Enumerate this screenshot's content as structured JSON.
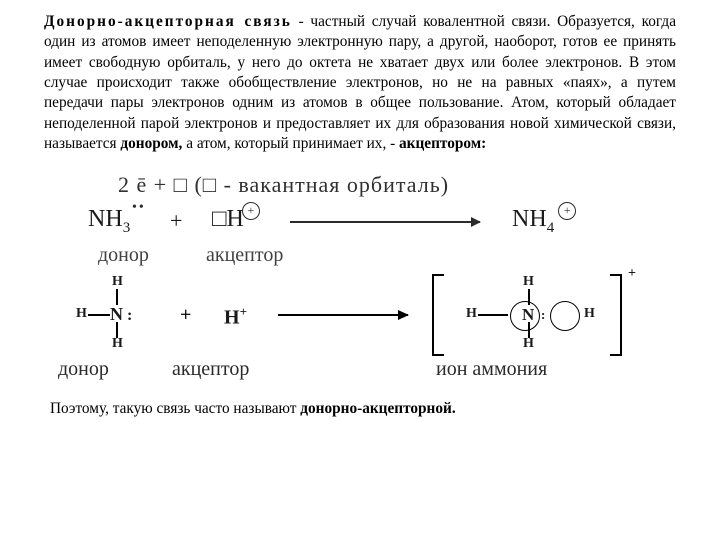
{
  "text": {
    "title_phrase": "Донорно-акцепторная связь",
    "paragraph_rest": " - частный случай ковалентной связи. Образуется, когда один из атомов имеет неподеленную электронную пару, а другой, наоборот, готов ее принять имеет свободную орбиталь, у него до октета не хватает двух или более электронов. В этом случае происходит также обобществление электронов, но не на равных «паях», а путем передачи пары электронов одним из атомов в общее пользование. Атом, который обладает неподеленной парой электронов и предоставляет их для образования новой химической связи, называется ",
    "donor_word": "донором,",
    "mid": " а атом, который принимает их, - ",
    "acceptor_word": "акцептором:",
    "closing_lead": "Поэтому, такую связь часто называют ",
    "closing_bold": "донорно-акцепторной."
  },
  "diagram": {
    "line1": "2 ē + □ (□ - вакантная орбиталь)",
    "nh3": {
      "dots": "••",
      "formula_N": "N",
      "formula_H": "H",
      "sub3": "3"
    },
    "plus": "+",
    "boxH": {
      "box": "□",
      "H": "H"
    },
    "nh4": {
      "N": "N",
      "H": "H",
      "sub4": "4"
    },
    "captions": {
      "donor": "донор",
      "acceptor": "акцептор",
      "ion": "ион аммония"
    },
    "Hplus": {
      "H": "H",
      "sup": "+"
    },
    "bracket_plus": "+",
    "lonepair": "••",
    "colors": {
      "text": "#000000",
      "diagram_gray": "#303030",
      "line": "#000000",
      "background": "#ffffff"
    },
    "fontsizes": {
      "paragraph": 15.3,
      "eqline": 22,
      "formula": 24,
      "caption": 20,
      "lewis_atom": 18,
      "lewis_H": 14
    }
  }
}
